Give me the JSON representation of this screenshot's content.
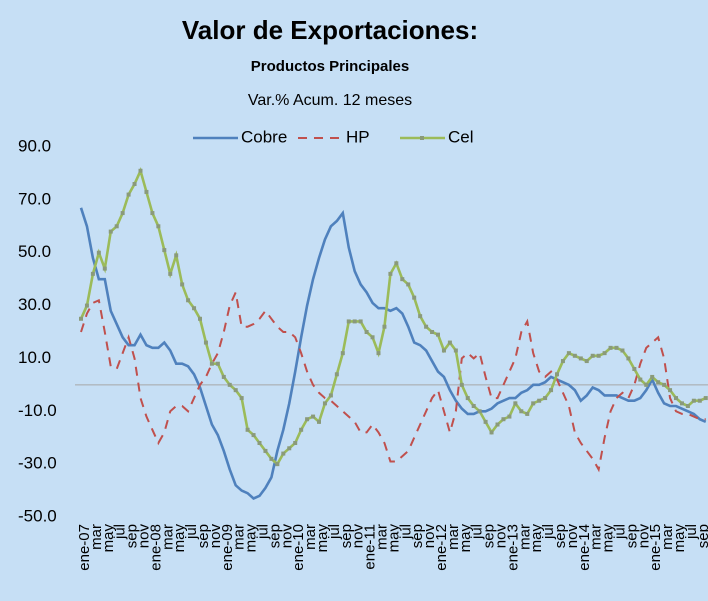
{
  "chart_data": {
    "type": "line",
    "title": "Valor de Exportaciones:",
    "subtitle": "Productos Principales",
    "note": "Var.% Acum. 12 meses",
    "categories": [
      "ene-07",
      null,
      "mar",
      null,
      "may",
      null,
      "jul",
      null,
      "sep",
      null,
      "nov",
      null,
      "ene-08",
      null,
      "mar",
      null,
      "may",
      null,
      "jul",
      null,
      "sep",
      null,
      "nov",
      null,
      "ene-09",
      null,
      "mar",
      null,
      "may",
      null,
      "jul",
      null,
      "sep",
      null,
      "nov",
      null,
      "ene-10",
      null,
      "mar",
      null,
      "may",
      null,
      "jul",
      null,
      "sep",
      null,
      "nov",
      null,
      "ene-11",
      null,
      "mar",
      null,
      "may",
      null,
      "jul",
      null,
      "sep",
      null,
      "nov",
      null,
      "ene-12",
      null,
      "mar",
      null,
      "may",
      null,
      "jul",
      null,
      "sep",
      null,
      "nov",
      null,
      "ene-13",
      null,
      "mar",
      null,
      "may",
      null,
      "jul",
      null,
      "sep",
      null,
      "nov",
      null,
      "ene-14",
      null,
      "mar",
      null,
      "may",
      null,
      "jul",
      null,
      "sep",
      null,
      "nov",
      null,
      "ene-15",
      null,
      "mar",
      null,
      "may",
      null,
      "jul",
      null,
      "sep",
      null
    ],
    "series": [
      {
        "name": "Cobre",
        "color": "#4f81bd",
        "dashed": false,
        "marker": "none",
        "values": [
          67,
          60,
          48,
          40,
          40,
          28,
          23,
          18,
          15,
          15,
          19,
          15,
          14,
          14,
          16,
          13,
          8,
          8,
          7,
          4,
          -1,
          -8,
          -15,
          -19,
          -25,
          -32,
          -38,
          -40,
          -41,
          -43,
          -42,
          -39,
          -35,
          -25,
          -17,
          -7,
          5,
          18,
          30,
          40,
          48,
          55,
          60,
          62,
          65,
          52,
          43,
          38,
          35,
          31,
          29,
          29,
          28,
          29,
          27,
          22,
          16,
          15,
          13,
          9,
          5,
          3,
          -2,
          -6,
          -9,
          -11,
          -11,
          -10,
          -10,
          -9,
          -7,
          -6,
          -5,
          -5,
          -3,
          -2,
          0,
          0,
          1,
          3,
          2,
          1,
          0,
          -2,
          -6,
          -4,
          -1,
          -2,
          -4,
          -4,
          -4,
          -5,
          -6,
          -6,
          -5,
          -2,
          2,
          -3,
          -7,
          -8,
          -8,
          -9,
          -10,
          -11,
          -13,
          -14
        ]
      },
      {
        "name": "HP",
        "color": "#c0504d",
        "dashed": true,
        "marker": "none",
        "values": [
          20,
          27,
          31,
          32,
          20,
          7,
          6,
          12,
          18,
          10,
          -5,
          -12,
          -17,
          -22,
          -18,
          -10,
          -8,
          -8,
          -10,
          -5,
          0,
          3,
          8,
          12,
          20,
          30,
          35,
          22,
          22,
          23,
          25,
          28,
          25,
          22,
          20,
          20,
          18,
          12,
          5,
          0,
          -3,
          -5,
          -6,
          -8,
          -10,
          -12,
          -14,
          -18,
          -18,
          -15,
          -18,
          -22,
          -29,
          -29,
          -27,
          -25,
          -20,
          -15,
          -10,
          -5,
          -2,
          -10,
          -18,
          -10,
          10,
          12,
          10,
          12,
          3,
          -5,
          -5,
          0,
          5,
          10,
          20,
          24,
          12,
          5,
          3,
          5,
          2,
          -3,
          -8,
          -18,
          -22,
          -25,
          -28,
          -32,
          -20,
          -10,
          -5,
          -3,
          -5,
          0,
          8,
          14,
          16,
          18,
          10,
          -5,
          -10,
          -11,
          -11,
          -12,
          -13,
          -13
        ]
      },
      {
        "name": "Cel",
        "color": "#9bbb59",
        "dashed": false,
        "marker": "square",
        "values": [
          25,
          30,
          42,
          50,
          44,
          58,
          60,
          65,
          72,
          76,
          81,
          73,
          65,
          60,
          51,
          42,
          49,
          38,
          32,
          29,
          25,
          16,
          8,
          8,
          3,
          0,
          -2,
          -5,
          -17,
          -19,
          -22,
          -25,
          -28,
          -30,
          -26,
          -24,
          -22,
          -17,
          -13,
          -12,
          -14,
          -7,
          -4,
          4,
          12,
          24,
          24,
          24,
          20,
          18,
          12,
          22,
          42,
          46,
          40,
          38,
          33,
          26,
          22,
          20,
          19,
          13,
          16,
          13,
          0,
          -5,
          -8,
          -10,
          -14,
          -18,
          -15,
          -13,
          -12,
          -7,
          -10,
          -11,
          -7,
          -6,
          -5,
          -2,
          4,
          9,
          12,
          11,
          10,
          9,
          11,
          11,
          12,
          14,
          14,
          13,
          10,
          6,
          2,
          0,
          3,
          1,
          0,
          -2,
          -5,
          -7,
          -8,
          -6,
          -6,
          -5
        ]
      }
    ],
    "ylim": [
      -50,
      90
    ],
    "yticks": [
      {
        "value": -50,
        "label": "-50.0"
      },
      {
        "value": -30,
        "label": "-30.0"
      },
      {
        "value": -10,
        "label": "-10.0"
      },
      {
        "value": 10,
        "label": "10.0"
      },
      {
        "value": 30,
        "label": "30.0"
      },
      {
        "value": 50,
        "label": "50.0"
      },
      {
        "value": 70,
        "label": "70.0"
      },
      {
        "value": 90,
        "label": "90.0"
      }
    ],
    "zero_line": true
  }
}
